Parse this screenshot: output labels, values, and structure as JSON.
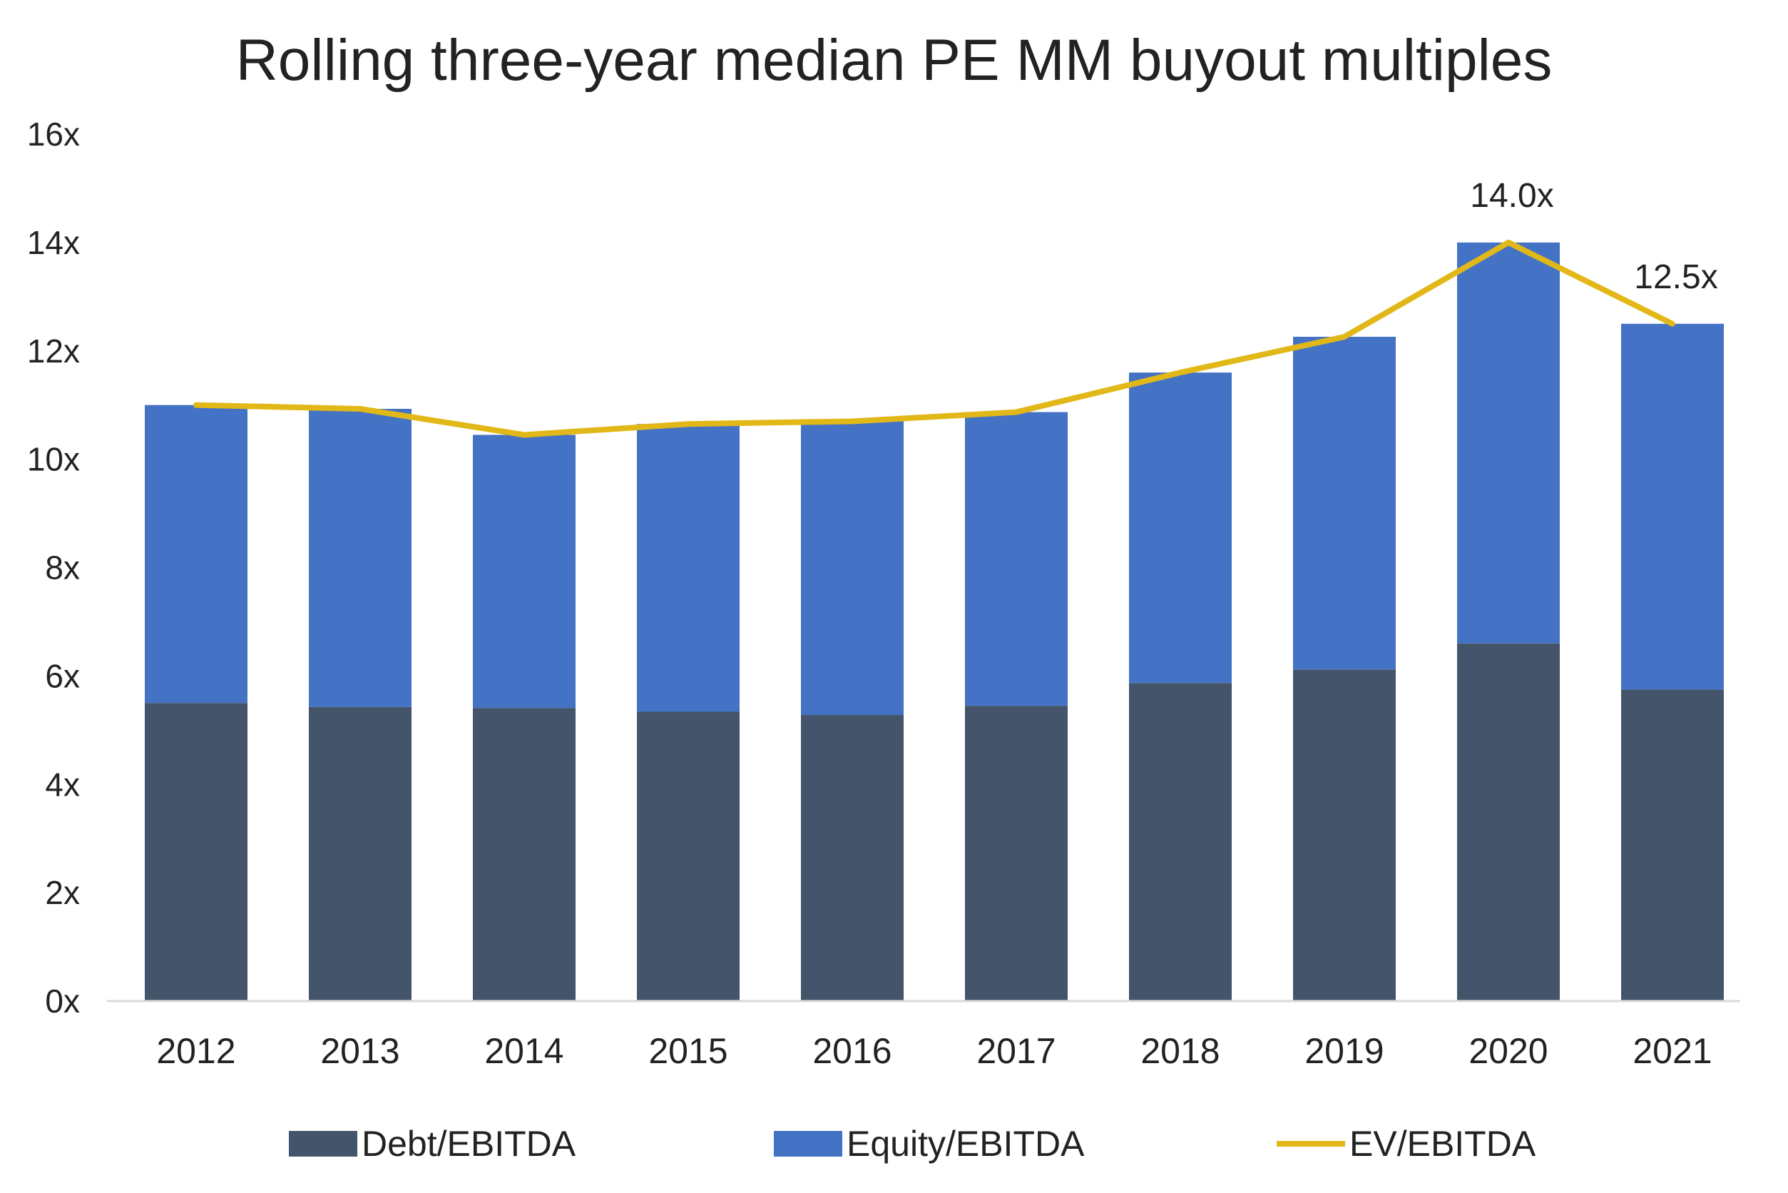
{
  "chart_data": {
    "type": "bar",
    "title": "Rolling three-year median PE MM buyout multiples",
    "xlabel": "",
    "ylabel": "",
    "ylim": [
      0,
      16
    ],
    "yticks": [
      "0x",
      "2x",
      "4x",
      "6x",
      "8x",
      "10x",
      "12x",
      "14x",
      "16x"
    ],
    "ytick_values": [
      0,
      2,
      4,
      6,
      8,
      10,
      12,
      14,
      16
    ],
    "categories": [
      "2012",
      "2013",
      "2014",
      "2015",
      "2016",
      "2017",
      "2018",
      "2019",
      "2020",
      "2021"
    ],
    "stacked": true,
    "grid": false,
    "legend_position": "bottom",
    "series": [
      {
        "name": "Debt/EBITDA",
        "kind": "bar",
        "color": "#44546A",
        "values": [
          5.5,
          5.43,
          5.41,
          5.34,
          5.28,
          5.45,
          5.87,
          6.12,
          6.6,
          5.75
        ]
      },
      {
        "name": "Equity/EBITDA",
        "kind": "bar",
        "color": "#4472C4",
        "values": [
          5.5,
          5.5,
          5.04,
          5.31,
          5.42,
          5.42,
          5.73,
          6.14,
          7.4,
          6.75
        ]
      },
      {
        "name": "EV/EBITDA",
        "kind": "line",
        "color": "#E1B818",
        "values": [
          11.0,
          10.93,
          10.45,
          10.65,
          10.7,
          10.87,
          11.6,
          12.26,
          14.0,
          12.5
        ]
      }
    ],
    "annotations": [
      {
        "category": "2020",
        "series": "EV/EBITDA",
        "text": "14.0x"
      },
      {
        "category": "2021",
        "series": "EV/EBITDA",
        "text": "12.5x"
      }
    ]
  }
}
